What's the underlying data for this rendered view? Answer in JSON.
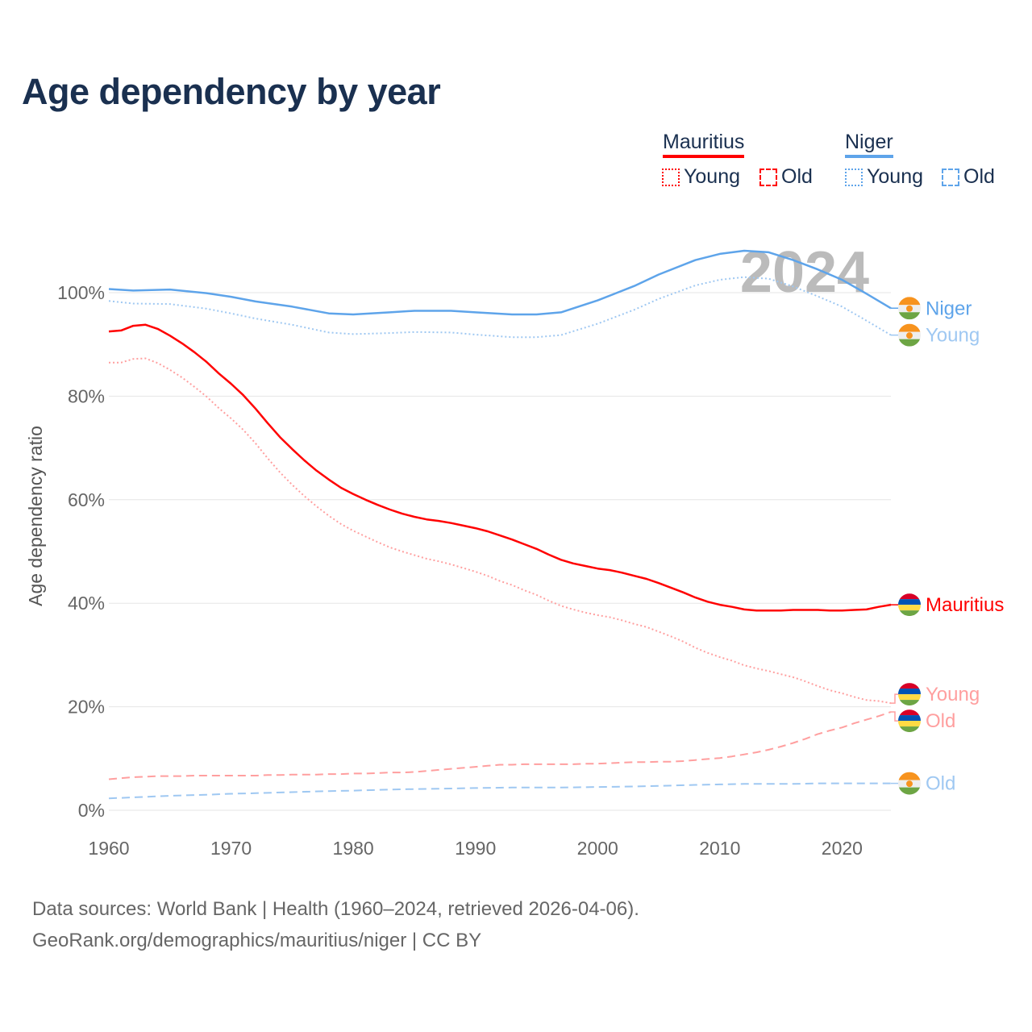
{
  "title": "Age dependency by year",
  "legend": {
    "groups": [
      {
        "name": "Mauritius",
        "color": "#ff0000",
        "items": [
          "Young",
          "Old"
        ]
      },
      {
        "name": "Niger",
        "color": "#5ea4ea",
        "items": [
          "Young",
          "Old"
        ]
      }
    ]
  },
  "year_label": "2024",
  "footer": {
    "line1": "Data sources: World Bank | Health (1960–2024, retrieved 2026-04-06).",
    "line2": "GeoRank.org/demographics/mauritius/niger | CC BY"
  },
  "chart_data": {
    "type": "line",
    "title": "Age dependency by year",
    "xlabel": "",
    "ylabel": "Age dependency ratio",
    "xlim": [
      1960,
      2024
    ],
    "ylim": [
      0,
      110
    ],
    "xticks": [
      "1960",
      "1970",
      "1980",
      "1990",
      "2000",
      "2010",
      "2020"
    ],
    "yticks": [
      "0%",
      "20%",
      "40%",
      "60%",
      "80%",
      "100%"
    ],
    "grid": true,
    "series": [
      {
        "name": "Mauritius",
        "label": "Mauritius",
        "country": "mauritius",
        "style": "solid",
        "color": "#ff0000",
        "x": [
          1960,
          1961,
          1962,
          1963,
          1964,
          1965,
          1966,
          1967,
          1968,
          1969,
          1970,
          1971,
          1972,
          1973,
          1974,
          1975,
          1976,
          1977,
          1978,
          1979,
          1980,
          1981,
          1982,
          1983,
          1984,
          1985,
          1986,
          1987,
          1988,
          1989,
          1990,
          1991,
          1992,
          1993,
          1994,
          1995,
          1996,
          1997,
          1998,
          1999,
          2000,
          2001,
          2002,
          2003,
          2004,
          2005,
          2006,
          2007,
          2008,
          2009,
          2010,
          2011,
          2012,
          2013,
          2014,
          2015,
          2016,
          2017,
          2018,
          2019,
          2020,
          2021,
          2022,
          2023,
          2024
        ],
        "y": [
          92.5,
          92.7,
          93.6,
          93.8,
          93.0,
          91.7,
          90.2,
          88.5,
          86.6,
          84.4,
          82.4,
          80.2,
          77.6,
          74.8,
          72.1,
          69.8,
          67.6,
          65.6,
          63.9,
          62.3,
          61.1,
          60.0,
          59.0,
          58.1,
          57.3,
          56.7,
          56.2,
          55.9,
          55.5,
          55.0,
          54.5,
          53.9,
          53.1,
          52.3,
          51.4,
          50.5,
          49.4,
          48.4,
          47.7,
          47.2,
          46.7,
          46.4,
          45.9,
          45.3,
          44.7,
          43.9,
          43.0,
          42.1,
          41.1,
          40.3,
          39.7,
          39.3,
          38.8,
          38.6,
          38.6,
          38.6,
          38.7,
          38.7,
          38.7,
          38.6,
          38.6,
          38.7,
          38.8,
          39.3,
          39.7
        ]
      },
      {
        "name": "Mauritius Young",
        "label": "Young",
        "country": "mauritius",
        "style": "dotted",
        "color": "#ff9f9f",
        "x": [
          1960,
          1961,
          1962,
          1963,
          1964,
          1965,
          1966,
          1967,
          1968,
          1969,
          1970,
          1971,
          1972,
          1973,
          1974,
          1975,
          1976,
          1977,
          1978,
          1979,
          1980,
          1981,
          1982,
          1983,
          1984,
          1985,
          1986,
          1987,
          1988,
          1989,
          1990,
          1991,
          1992,
          1993,
          1994,
          1995,
          1996,
          1997,
          1998,
          1999,
          2000,
          2001,
          2002,
          2003,
          2004,
          2005,
          2006,
          2007,
          2008,
          2009,
          2010,
          2011,
          2012,
          2013,
          2014,
          2015,
          2016,
          2017,
          2018,
          2019,
          2020,
          2021,
          2022,
          2023,
          2024
        ],
        "y": [
          86.5,
          86.5,
          87.2,
          87.3,
          86.4,
          85.1,
          83.6,
          81.8,
          79.9,
          77.7,
          75.7,
          73.5,
          70.9,
          68.0,
          65.3,
          62.9,
          60.7,
          58.7,
          56.9,
          55.3,
          54.0,
          52.9,
          51.8,
          50.8,
          50.0,
          49.3,
          48.6,
          48.1,
          47.5,
          46.8,
          46.1,
          45.3,
          44.3,
          43.5,
          42.5,
          41.6,
          40.5,
          39.5,
          38.8,
          38.2,
          37.7,
          37.3,
          36.7,
          36.0,
          35.4,
          34.5,
          33.6,
          32.6,
          31.4,
          30.4,
          29.6,
          28.9,
          28.0,
          27.4,
          26.9,
          26.3,
          25.7,
          24.9,
          24.0,
          23.2,
          22.6,
          21.9,
          21.3,
          21.1,
          20.7
        ]
      },
      {
        "name": "Mauritius Old",
        "label": "Old",
        "country": "mauritius",
        "style": "dashed",
        "color": "#ff9f9f",
        "x": [
          1960,
          1961,
          1962,
          1963,
          1964,
          1965,
          1966,
          1967,
          1968,
          1969,
          1970,
          1971,
          1972,
          1973,
          1974,
          1975,
          1976,
          1977,
          1978,
          1979,
          1980,
          1981,
          1982,
          1983,
          1984,
          1985,
          1986,
          1987,
          1988,
          1989,
          1990,
          1991,
          1992,
          1993,
          1994,
          1995,
          1996,
          1997,
          1998,
          1999,
          2000,
          2001,
          2002,
          2003,
          2004,
          2005,
          2006,
          2007,
          2008,
          2009,
          2010,
          2011,
          2012,
          2013,
          2014,
          2015,
          2016,
          2017,
          2018,
          2019,
          2020,
          2021,
          2022,
          2023,
          2024
        ],
        "y": [
          6.0,
          6.2,
          6.4,
          6.5,
          6.6,
          6.6,
          6.6,
          6.7,
          6.7,
          6.7,
          6.7,
          6.7,
          6.7,
          6.8,
          6.8,
          6.9,
          6.9,
          6.9,
          7.0,
          7.0,
          7.1,
          7.1,
          7.2,
          7.3,
          7.3,
          7.4,
          7.6,
          7.8,
          8.0,
          8.2,
          8.4,
          8.6,
          8.8,
          8.8,
          8.9,
          8.9,
          8.9,
          8.9,
          8.9,
          9.0,
          9.0,
          9.1,
          9.2,
          9.3,
          9.3,
          9.4,
          9.4,
          9.5,
          9.7,
          9.9,
          10.1,
          10.4,
          10.8,
          11.2,
          11.7,
          12.3,
          13.0,
          13.8,
          14.7,
          15.4,
          16.0,
          16.8,
          17.5,
          18.2,
          19.0
        ]
      },
      {
        "name": "Niger",
        "label": "Niger",
        "country": "niger",
        "style": "solid",
        "color": "#5ea4ea",
        "x": [
          1960,
          1962,
          1965,
          1968,
          1970,
          1972,
          1975,
          1978,
          1980,
          1983,
          1985,
          1988,
          1990,
          1993,
          1995,
          1997,
          2000,
          2003,
          2005,
          2008,
          2010,
          2012,
          2014,
          2016,
          2018,
          2020,
          2022,
          2024
        ],
        "y": [
          100.7,
          100.4,
          100.6,
          99.9,
          99.2,
          98.3,
          97.3,
          96.0,
          95.8,
          96.2,
          96.5,
          96.5,
          96.2,
          95.8,
          95.8,
          96.2,
          98.5,
          101.3,
          103.5,
          106.3,
          107.5,
          108.1,
          107.8,
          106.3,
          104.5,
          102.5,
          99.8,
          97.0
        ]
      },
      {
        "name": "Niger Young",
        "label": "Young",
        "country": "niger",
        "style": "dotted",
        "color": "#9fc8f2",
        "x": [
          1960,
          1962,
          1965,
          1968,
          1970,
          1972,
          1975,
          1978,
          1980,
          1983,
          1985,
          1988,
          1990,
          1993,
          1995,
          1997,
          2000,
          2003,
          2005,
          2008,
          2010,
          2012,
          2014,
          2016,
          2018,
          2020,
          2022,
          2024
        ],
        "y": [
          98.4,
          97.9,
          97.8,
          96.9,
          96.0,
          95.0,
          93.8,
          92.3,
          92.0,
          92.2,
          92.4,
          92.3,
          91.9,
          91.4,
          91.4,
          91.8,
          94.0,
          96.7,
          98.8,
          101.4,
          102.5,
          103.0,
          102.7,
          101.2,
          99.3,
          97.3,
          94.6,
          91.8
        ]
      },
      {
        "name": "Niger Old",
        "label": "Old",
        "country": "niger",
        "style": "dashed",
        "color": "#9fc8f2",
        "x": [
          1960,
          1962,
          1965,
          1968,
          1970,
          1972,
          1975,
          1978,
          1980,
          1983,
          1985,
          1988,
          1990,
          1993,
          1995,
          1997,
          2000,
          2003,
          2005,
          2008,
          2010,
          2012,
          2014,
          2016,
          2018,
          2020,
          2022,
          2024
        ],
        "y": [
          2.3,
          2.5,
          2.8,
          3.0,
          3.2,
          3.3,
          3.5,
          3.7,
          3.8,
          4.0,
          4.1,
          4.2,
          4.3,
          4.4,
          4.4,
          4.4,
          4.5,
          4.6,
          4.7,
          4.9,
          5.0,
          5.1,
          5.1,
          5.1,
          5.2,
          5.2,
          5.2,
          5.2
        ]
      }
    ]
  }
}
